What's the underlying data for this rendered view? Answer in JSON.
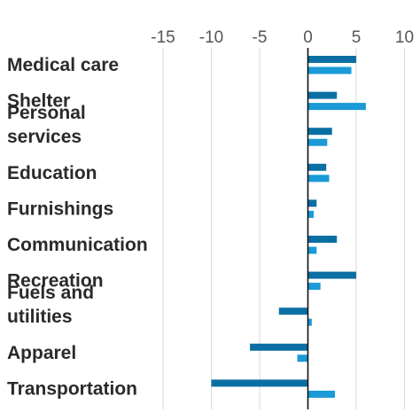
{
  "chart_data": {
    "type": "bar",
    "orientation": "horizontal",
    "title": "",
    "xlabel": "",
    "ylabel": "",
    "xlim": [
      -15,
      10
    ],
    "x_ticks": [
      -15,
      -10,
      -5,
      0,
      5,
      10
    ],
    "x_tick_labels": [
      "-15",
      "-10",
      "-5",
      "0",
      "5",
      "10"
    ],
    "grid": "vertical",
    "legend": "none",
    "categories": [
      "Medical care",
      "Shelter",
      "Personal services",
      "Education",
      "Furnishings",
      "Communication",
      "Recreation",
      "Fuels and utilities",
      "Apparel",
      "Transportation"
    ],
    "series": [
      {
        "color": "#0b6fa4",
        "values": [
          5.0,
          3.0,
          2.5,
          1.9,
          0.9,
          3.0,
          5.0,
          -3.0,
          -6.0,
          -10.0
        ]
      },
      {
        "color": "#1a9ad6",
        "values": [
          4.5,
          6.0,
          2.0,
          2.2,
          0.6,
          0.9,
          1.3,
          0.4,
          -1.1,
          2.8
        ]
      }
    ]
  }
}
